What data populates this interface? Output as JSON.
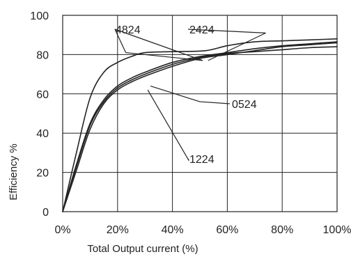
{
  "chart_data": {
    "type": "line",
    "xlabel": "Total Output current (%)",
    "ylabel": "Efficiency %",
    "xlim": [
      0,
      100
    ],
    "ylim": [
      0,
      100
    ],
    "grid": true,
    "x_ticks": [
      0,
      20,
      40,
      60,
      80,
      100
    ],
    "x_tick_labels": [
      "0%",
      "20%",
      "40%",
      "60%",
      "80%",
      "100%"
    ],
    "y_ticks": [
      0,
      20,
      40,
      60,
      80,
      100
    ],
    "y_tick_labels": [
      "0",
      "20",
      "40",
      "60",
      "80",
      "100"
    ],
    "series": [
      {
        "name": "4824",
        "x": [
          0,
          5,
          10,
          15,
          20,
          25,
          30,
          40,
          52,
          60,
          70,
          80,
          90,
          100
        ],
        "y": [
          0,
          30,
          58,
          71,
          76,
          79,
          81,
          81.5,
          82,
          84.5,
          86.5,
          87,
          87.5,
          88
        ]
      },
      {
        "name": "2424",
        "x": [
          0,
          5,
          10,
          15,
          20,
          25,
          30,
          40,
          50,
          60,
          70,
          80,
          90,
          100
        ],
        "y": [
          0,
          24,
          45,
          57,
          64,
          68,
          71,
          76,
          79,
          81,
          83,
          84.5,
          85.5,
          86.5
        ]
      },
      {
        "name": "0524",
        "x": [
          0,
          5,
          10,
          15,
          20,
          25,
          30,
          40,
          50,
          60,
          70,
          80,
          90,
          100
        ],
        "y": [
          0,
          23,
          44,
          56,
          63,
          67,
          70,
          75,
          78.5,
          80.5,
          81.5,
          82.5,
          83.5,
          84
        ]
      },
      {
        "name": "1224",
        "x": [
          0,
          5,
          10,
          15,
          20,
          25,
          30,
          40,
          50,
          60,
          70,
          80,
          90,
          100
        ],
        "y": [
          0,
          21,
          42,
          55,
          62,
          66,
          69,
          74,
          78,
          80,
          82,
          84,
          85,
          86
        ]
      }
    ],
    "annotations": [
      {
        "label": "4824",
        "series": "4824",
        "anchor_x": 100,
        "anchor_y": 91,
        "targets": [
          [
            23,
            81
          ],
          [
            51,
            77
          ]
        ]
      },
      {
        "label": "2424",
        "series": "2424",
        "anchor_x": 102,
        "anchor_y": 91,
        "targets": [
          [
            74,
            91
          ],
          [
            53,
            77
          ]
        ]
      },
      {
        "label": "0524",
        "series": "0524",
        "anchor_x": 104,
        "anchor_y": 56,
        "targets": [
          [
            50,
            56
          ],
          [
            32,
            64
          ]
        ]
      },
      {
        "label": "1224",
        "series": "1224",
        "anchor_x": 103,
        "anchor_y": 26,
        "targets": [
          [
            46,
            26
          ],
          [
            31,
            62
          ]
        ]
      }
    ]
  }
}
